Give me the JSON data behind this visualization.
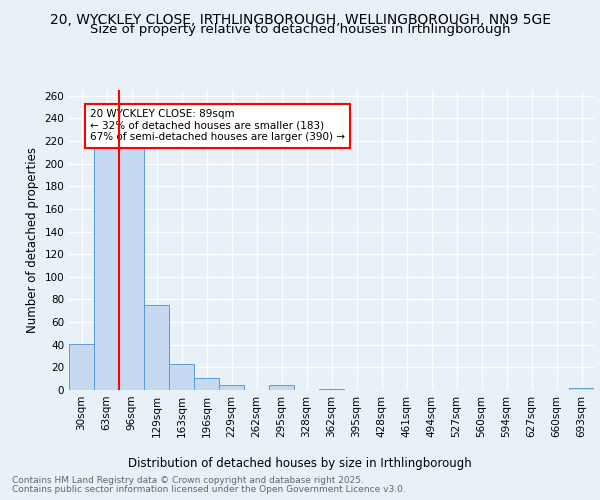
{
  "title_line1": "20, WYCKLEY CLOSE, IRTHLINGBOROUGH, WELLINGBOROUGH, NN9 5GE",
  "title_line2": "Size of property relative to detached houses in Irthlingborough",
  "xlabel": "Distribution of detached houses by size in Irthlingborough",
  "ylabel": "Number of detached properties",
  "footer_line1": "Contains HM Land Registry data © Crown copyright and database right 2025.",
  "footer_line2": "Contains public sector information licensed under the Open Government Licence v3.0.",
  "categories": [
    "30sqm",
    "63sqm",
    "96sqm",
    "129sqm",
    "163sqm",
    "196sqm",
    "229sqm",
    "262sqm",
    "295sqm",
    "328sqm",
    "362sqm",
    "395sqm",
    "428sqm",
    "461sqm",
    "494sqm",
    "527sqm",
    "560sqm",
    "594sqm",
    "627sqm",
    "660sqm",
    "693sqm"
  ],
  "values": [
    41,
    230,
    215,
    75,
    23,
    11,
    4,
    0,
    4,
    0,
    1,
    0,
    0,
    0,
    0,
    0,
    0,
    0,
    0,
    0,
    2
  ],
  "bar_color": "#c6d9f0",
  "bar_edge_color": "#5b9bd5",
  "red_line_index": 1.5,
  "annotation_text": "20 WYCKLEY CLOSE: 89sqm\n← 32% of detached houses are smaller (183)\n67% of semi-detached houses are larger (390) →",
  "ylim": [
    0,
    265
  ],
  "yticks": [
    0,
    20,
    40,
    60,
    80,
    100,
    120,
    140,
    160,
    180,
    200,
    220,
    240,
    260
  ],
  "bg_color": "#e8f0f8",
  "grid_color": "#ffffff",
  "title_fontsize": 10,
  "subtitle_fontsize": 9.5,
  "axis_label_fontsize": 8.5,
  "tick_fontsize": 7.5,
  "footer_fontsize": 6.5,
  "annotation_fontsize": 7.5
}
